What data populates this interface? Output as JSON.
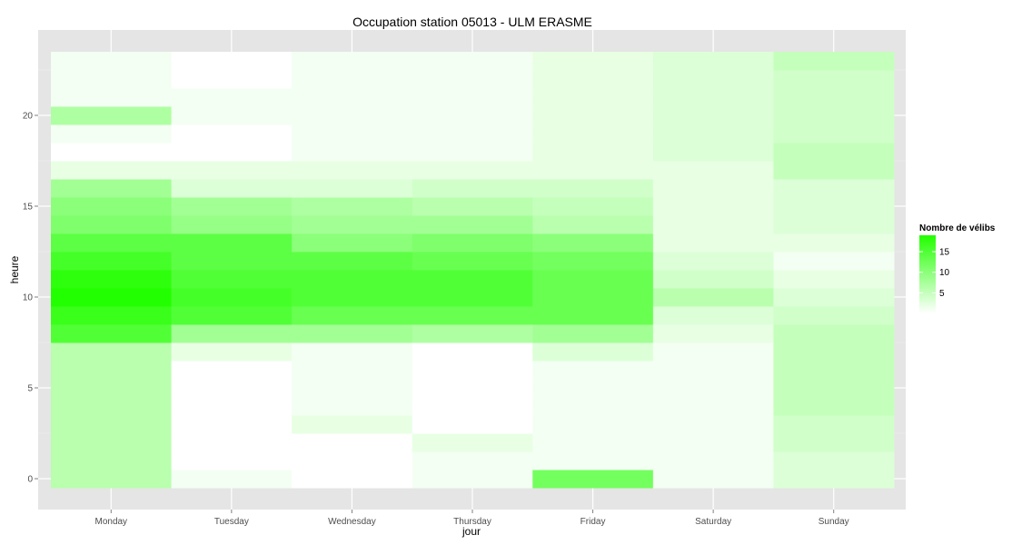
{
  "chart_data": {
    "type": "heatmap",
    "title": "Occupation station 05013 - ULM ERASME",
    "xlabel": "jour",
    "ylabel": "heure",
    "categories": [
      "Monday",
      "Tuesday",
      "Wednesday",
      "Thursday",
      "Friday",
      "Saturday",
      "Sunday"
    ],
    "y_ticks": [
      0,
      5,
      10,
      15,
      20
    ],
    "ylim": [
      -0.5,
      23.5
    ],
    "grid": true,
    "legend": {
      "title": "Nombre de vélibs",
      "ticks": [
        5,
        10,
        15
      ],
      "range": [
        0,
        19
      ],
      "low_color": "#ffffff",
      "high_color": "#22ff00",
      "placement": "right"
    },
    "hours": [
      0,
      1,
      2,
      3,
      4,
      5,
      6,
      7,
      8,
      9,
      10,
      11,
      12,
      13,
      14,
      15,
      16,
      17,
      18,
      19,
      20,
      21,
      22,
      23
    ],
    "values": [
      [
        6,
        6,
        6,
        6,
        6,
        6,
        6,
        6,
        15,
        17,
        19,
        18,
        16,
        14,
        11,
        10,
        8,
        2,
        0,
        1,
        7,
        1,
        1,
        1
      ],
      [
        1,
        0,
        0,
        0,
        0,
        0,
        0,
        2,
        8,
        15,
        16,
        15,
        14,
        14,
        9,
        8,
        3,
        2,
        0,
        0,
        1,
        1,
        0,
        0
      ],
      [
        0,
        0,
        0,
        2,
        1,
        1,
        1,
        1,
        8,
        13,
        15,
        15,
        14,
        10,
        8,
        7,
        3,
        2,
        1,
        1,
        1,
        1,
        1,
        1
      ],
      [
        1,
        1,
        2,
        0,
        0,
        0,
        0,
        0,
        7,
        13,
        15,
        15,
        13,
        11,
        8,
        6,
        4,
        2,
        1,
        1,
        1,
        1,
        1,
        1
      ],
      [
        12,
        1,
        1,
        1,
        1,
        1,
        1,
        3,
        8,
        13,
        13,
        13,
        12,
        10,
        6,
        5,
        4,
        2,
        2,
        2,
        2,
        2,
        2,
        2
      ],
      [
        1,
        1,
        1,
        1,
        1,
        1,
        1,
        1,
        2,
        3,
        6,
        4,
        3,
        2,
        2,
        2,
        2,
        2,
        3,
        3,
        3,
        3,
        3,
        3
      ],
      [
        3,
        3,
        4,
        4,
        5,
        5,
        5,
        5,
        5,
        4,
        3,
        2,
        1,
        2,
        3,
        3,
        3,
        5,
        5,
        4,
        4,
        4,
        4,
        5
      ]
    ]
  }
}
